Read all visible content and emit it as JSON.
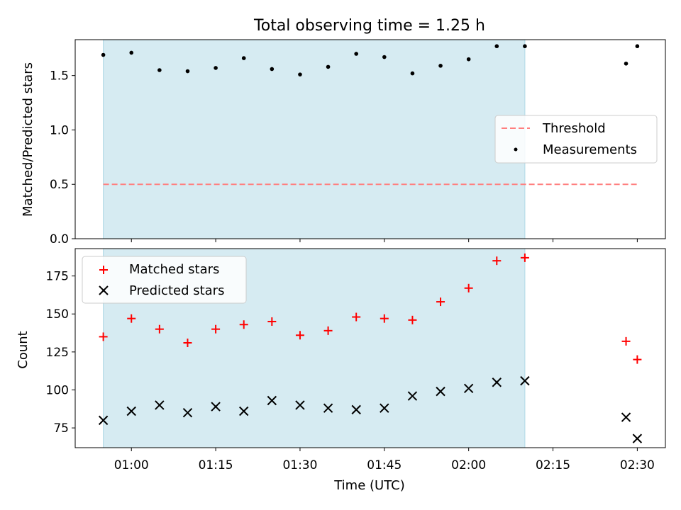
{
  "chart_data": [
    {
      "type": "scatter",
      "title": "Total observing time = 1.25 h",
      "xlabel": "",
      "ylabel": "Matched/Predicted stars",
      "ylim": [
        0,
        1.83
      ],
      "yticks": [
        0.0,
        0.5,
        1.0,
        1.5
      ],
      "ytick_labels": [
        "0.0",
        "0.5",
        "1.0",
        "1.5"
      ],
      "grid": false,
      "legend_position": "center-right",
      "shaded_interval": {
        "start": "00:55",
        "end": "02:10",
        "color": "#add8e6"
      },
      "threshold": {
        "label": "Threshold",
        "value": 0.5,
        "x_start": "00:55",
        "x_end": "02:30",
        "color": "#ff7f7f"
      },
      "series": [
        {
          "name": "Measurements",
          "marker": "dot",
          "color": "#000000",
          "x": [
            "00:55",
            "01:00",
            "01:05",
            "01:10",
            "01:15",
            "01:20",
            "01:25",
            "01:30",
            "01:35",
            "01:40",
            "01:45",
            "01:50",
            "01:55",
            "02:00",
            "02:05",
            "02:10",
            "02:28",
            "02:30"
          ],
          "y": [
            1.69,
            1.71,
            1.55,
            1.54,
            1.57,
            1.66,
            1.56,
            1.51,
            1.58,
            1.7,
            1.67,
            1.52,
            1.59,
            1.65,
            1.77,
            1.77,
            1.61,
            1.77
          ]
        }
      ]
    },
    {
      "type": "scatter",
      "title": "",
      "xlabel": "Time (UTC)",
      "ylabel": "Count",
      "ylim": [
        62,
        193
      ],
      "yticks": [
        75,
        100,
        125,
        150,
        175
      ],
      "ytick_labels": [
        "75",
        "100",
        "125",
        "150",
        "175"
      ],
      "xticks": [
        "01:00",
        "01:15",
        "01:30",
        "01:45",
        "02:00",
        "02:15",
        "02:30"
      ],
      "xtick_labels": [
        "01:00",
        "01:15",
        "01:30",
        "01:45",
        "02:00",
        "02:15",
        "02:30"
      ],
      "xlim": [
        "00:50",
        "02:35"
      ],
      "grid": false,
      "legend_position": "top-left",
      "shaded_interval": {
        "start": "00:55",
        "end": "02:10",
        "color": "#add8e6"
      },
      "series": [
        {
          "name": "Matched stars",
          "marker": "plus",
          "color": "#ff0000",
          "x": [
            "00:55",
            "01:00",
            "01:05",
            "01:10",
            "01:15",
            "01:20",
            "01:25",
            "01:30",
            "01:35",
            "01:40",
            "01:45",
            "01:50",
            "01:55",
            "02:00",
            "02:05",
            "02:10",
            "02:28",
            "02:30"
          ],
          "y": [
            135,
            147,
            140,
            131,
            140,
            143,
            145,
            136,
            139,
            148,
            147,
            146,
            158,
            167,
            185,
            187,
            132,
            120
          ]
        },
        {
          "name": "Predicted stars",
          "marker": "x",
          "color": "#000000",
          "x": [
            "00:55",
            "01:00",
            "01:05",
            "01:10",
            "01:15",
            "01:20",
            "01:25",
            "01:30",
            "01:35",
            "01:40",
            "01:45",
            "01:50",
            "01:55",
            "02:00",
            "02:05",
            "02:10",
            "02:28",
            "02:30"
          ],
          "y": [
            80,
            86,
            90,
            85,
            89,
            86,
            93,
            90,
            88,
            87,
            88,
            96,
            99,
            101,
            105,
            106,
            82,
            68
          ]
        }
      ]
    }
  ]
}
